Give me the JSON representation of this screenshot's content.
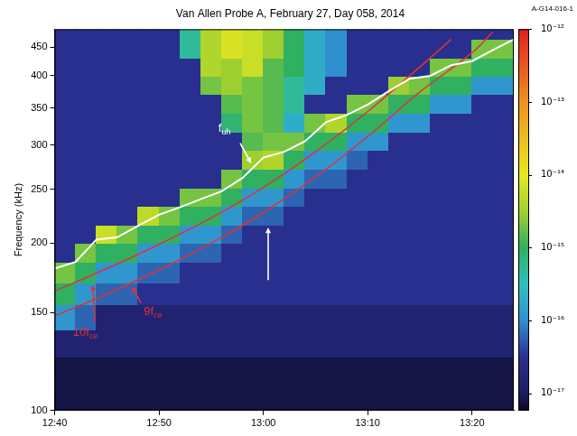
{
  "chart_data": {
    "type": "heatmap",
    "title": "Van Allen Probe A, February 27, Day 058, 2014",
    "corner_label": "A-G14-016-1",
    "y_label": "Frequency (kHz)",
    "log": "y",
    "grid": false,
    "xlim": [
      760,
      804
    ],
    "xticks": [
      {
        "value": 760,
        "label": "12:40"
      },
      {
        "value": 770,
        "label": "12:50"
      },
      {
        "value": 780,
        "label": "13:00"
      },
      {
        "value": 790,
        "label": "13:10"
      },
      {
        "value": 800,
        "label": "13:20"
      }
    ],
    "ylim": [
      100,
      485
    ],
    "yticks": [
      100,
      150,
      200,
      250,
      300,
      350,
      400,
      450
    ],
    "colorbar": {
      "log": true,
      "range": [
        5.8e-18,
        1e-12
      ],
      "ticks": [
        {
          "value": 1e-17,
          "label": "10⁻¹⁷"
        },
        {
          "value": 1e-16,
          "label": "10⁻¹⁶"
        },
        {
          "value": 1e-15,
          "label": "10⁻¹⁵"
        },
        {
          "value": 1e-14,
          "label": "10⁻¹⁴"
        },
        {
          "value": 1e-13,
          "label": "10⁻¹³"
        },
        {
          "value": 1e-12,
          "label": "10⁻¹²"
        }
      ]
    },
    "x_edges": [
      760,
      762,
      764,
      766,
      768,
      770,
      772,
      774,
      776,
      778,
      780,
      782,
      784,
      786,
      788,
      790,
      792,
      794,
      796,
      798,
      800,
      802,
      804
    ],
    "y_edges": [
      100,
      112,
      125,
      140,
      155,
      170,
      185,
      200,
      216,
      233,
      252,
      272,
      294,
      318,
      343,
      370,
      400,
      432,
      466,
      485
    ],
    "cells": [
      [
        8e-18,
        8e-18,
        1.5e-17,
        1.2e-16,
        1e-15,
        2e-15,
        3e-17,
        3e-17,
        3e-17,
        3e-17,
        3e-17,
        3e-17,
        3e-17,
        3e-17,
        3e-17,
        3e-17,
        3e-17,
        3e-17,
        3e-17
      ],
      [
        8e-18,
        8e-18,
        1.5e-17,
        6e-17,
        1.2e-16,
        1e-15,
        2e-15,
        3e-17,
        3e-17,
        3e-17,
        3e-17,
        3e-17,
        3e-17,
        3e-17,
        3e-17,
        3e-17,
        3e-17,
        3e-17,
        3e-17
      ],
      [
        8e-18,
        8e-18,
        1.5e-17,
        1.5e-17,
        6e-17,
        1.2e-16,
        1e-15,
        6e-15,
        3e-17,
        3e-17,
        3e-17,
        3e-17,
        3e-17,
        3e-17,
        3e-17,
        3e-17,
        3e-17,
        3e-17,
        3e-17
      ],
      [
        8e-18,
        8e-18,
        1.5e-17,
        1.5e-17,
        6e-17,
        1.2e-16,
        1e-15,
        2e-15,
        3e-17,
        3e-17,
        3e-17,
        3e-17,
        3e-17,
        3e-17,
        3e-17,
        3e-17,
        3e-17,
        3e-17,
        3e-17
      ],
      [
        8e-18,
        8e-18,
        1.5e-17,
        1.5e-17,
        3e-17,
        6e-17,
        1.2e-16,
        1e-15,
        5e-15,
        3e-17,
        3e-17,
        3e-17,
        3e-17,
        3e-17,
        3e-17,
        3e-17,
        3e-17,
        3e-17,
        3e-17
      ],
      [
        8e-18,
        8e-18,
        1.5e-17,
        1.5e-17,
        3e-17,
        6e-17,
        1.2e-16,
        1e-15,
        2e-15,
        3e-17,
        3e-17,
        3e-17,
        3e-17,
        3e-17,
        3e-17,
        3e-17,
        3e-17,
        3e-17,
        3e-17
      ],
      [
        8e-18,
        8e-18,
        1.5e-17,
        1.5e-17,
        3e-17,
        3e-17,
        6e-17,
        1.2e-16,
        1e-15,
        2e-15,
        3e-17,
        3e-17,
        3e-17,
        3e-17,
        3e-17,
        3e-17,
        3e-17,
        5e-16,
        5e-16
      ],
      [
        8e-18,
        8e-18,
        1.5e-17,
        1.5e-17,
        3e-17,
        3e-17,
        6e-17,
        1.2e-16,
        1e-15,
        2e-15,
        3e-17,
        3e-17,
        3e-17,
        3e-17,
        3e-17,
        2e-15,
        4e-15,
        4e-15,
        4e-15
      ],
      [
        8e-18,
        8e-18,
        1.5e-17,
        1.5e-17,
        3e-17,
        3e-17,
        3e-17,
        6e-17,
        1.2e-16,
        1e-15,
        2e-15,
        3e-17,
        3e-17,
        8e-16,
        1.5e-15,
        3e-15,
        3e-15,
        8e-15,
        8e-15
      ],
      [
        8e-18,
        8e-18,
        1.5e-17,
        1.5e-17,
        3e-17,
        3e-17,
        3e-17,
        3e-17,
        6e-17,
        1.2e-16,
        1e-15,
        3e-15,
        1.5e-15,
        2e-15,
        2e-15,
        2e-15,
        6e-15,
        6e-15,
        6e-15
      ],
      [
        8e-18,
        8e-18,
        1.5e-17,
        1.5e-17,
        3e-17,
        3e-17,
        3e-17,
        3e-17,
        6e-17,
        1.2e-16,
        1e-15,
        4e-15,
        2e-15,
        1.5e-15,
        1.5e-15,
        1.5e-15,
        1.5e-15,
        3e-15,
        3e-15
      ],
      [
        8e-18,
        8e-18,
        1.5e-17,
        1.5e-17,
        3e-17,
        3e-17,
        3e-17,
        3e-17,
        3e-17,
        6e-17,
        1.2e-16,
        1e-15,
        2e-15,
        2e-16,
        5e-16,
        5e-16,
        1e-15,
        1e-15,
        1e-15
      ],
      [
        8e-18,
        8e-18,
        1.5e-17,
        1.5e-17,
        3e-17,
        3e-17,
        3e-17,
        3e-17,
        3e-17,
        3e-17,
        6e-17,
        1.2e-16,
        1e-15,
        2e-15,
        3e-17,
        2e-16,
        2e-16,
        2e-16,
        2e-16
      ],
      [
        8e-18,
        8e-18,
        1.5e-17,
        1.5e-17,
        3e-17,
        3e-17,
        3e-17,
        3e-17,
        3e-17,
        3e-17,
        6e-17,
        1.2e-16,
        1e-15,
        4e-15,
        3e-17,
        3e-17,
        1e-16,
        1e-16,
        1e-16
      ],
      [
        8e-18,
        8e-18,
        1.5e-17,
        1.5e-17,
        3e-17,
        3e-17,
        3e-17,
        3e-17,
        3e-17,
        3e-17,
        3e-17,
        6e-17,
        1.2e-16,
        1e-15,
        2e-15,
        3e-17,
        3e-17,
        3e-17,
        3e-17
      ],
      [
        8e-18,
        8e-18,
        1.5e-17,
        1.5e-17,
        3e-17,
        3e-17,
        3e-17,
        3e-17,
        3e-17,
        3e-17,
        3e-17,
        3e-17,
        1.2e-16,
        1e-15,
        2e-15,
        3e-17,
        3e-17,
        3e-17,
        3e-17
      ],
      [
        8e-18,
        8e-18,
        1.5e-17,
        1.5e-17,
        3e-17,
        3e-17,
        3e-17,
        3e-17,
        3e-17,
        3e-17,
        3e-17,
        3e-17,
        3e-17,
        1.2e-16,
        1e-15,
        3e-15,
        3e-17,
        3e-17,
        3e-17
      ],
      [
        8e-18,
        8e-18,
        1.5e-17,
        1.5e-17,
        3e-17,
        3e-17,
        3e-17,
        3e-17,
        3e-17,
        3e-17,
        3e-17,
        3e-17,
        3e-17,
        1.2e-16,
        1e-15,
        2e-15,
        3e-17,
        3e-17,
        3e-17
      ],
      [
        8e-18,
        8e-18,
        1.5e-17,
        1.5e-17,
        3e-17,
        3e-17,
        3e-17,
        3e-17,
        3e-17,
        3e-17,
        3e-17,
        3e-17,
        3e-17,
        3e-17,
        1.2e-16,
        1e-15,
        2e-15,
        3e-17,
        3e-17
      ],
      [
        8e-18,
        8e-18,
        1.5e-17,
        1.5e-17,
        3e-17,
        3e-17,
        3e-17,
        3e-17,
        3e-17,
        3e-17,
        3e-17,
        3e-17,
        3e-17,
        3e-17,
        1.2e-16,
        1e-15,
        2e-15,
        3e-17,
        3e-17
      ],
      [
        8e-18,
        8e-18,
        1.5e-17,
        1.5e-17,
        3e-17,
        3e-17,
        3e-17,
        3e-17,
        3e-17,
        3e-17,
        3e-17,
        3e-17,
        3e-17,
        3e-17,
        3e-17,
        1.2e-16,
        1e-15,
        2e-15,
        3e-17
      ],
      [
        8e-18,
        8e-18,
        1.5e-17,
        1.5e-17,
        3e-17,
        3e-17,
        3e-17,
        3e-17,
        3e-17,
        3e-17,
        3e-17,
        3e-17,
        3e-17,
        3e-17,
        3e-17,
        1.2e-16,
        1e-15,
        2e-15,
        3e-17
      ]
    ],
    "series": [
      {
        "label": {
          "text": "f",
          "sub": "uh"
        },
        "color": "#ffffff",
        "type": "line",
        "x": [
          760,
          762,
          764,
          766,
          768,
          770,
          772,
          774,
          776,
          778,
          780,
          782,
          784,
          786,
          788,
          790,
          792,
          794,
          796,
          798,
          800,
          802,
          804
        ],
        "values": [
          180,
          185,
          203,
          205,
          215,
          225,
          232,
          240,
          248,
          262,
          285,
          292,
          305,
          330,
          340,
          355,
          375,
          395,
          400,
          418,
          425,
          445,
          465
        ]
      },
      {
        "label": {
          "text": "10f",
          "sub": "ce"
        },
        "color": "#e0303c",
        "type": "line",
        "x": [
          760,
          765,
          770,
          775,
          780,
          785,
          790,
          795,
          798
        ],
        "values": [
          164,
          180,
          199,
          222,
          252,
          292,
          345,
          415,
          465
        ]
      },
      {
        "label": {
          "text": "9f",
          "sub": "ce"
        },
        "color": "#e0303c",
        "type": "line",
        "x": [
          760,
          765,
          770,
          775,
          780,
          785,
          790,
          795,
          800,
          802
        ],
        "values": [
          148,
          162,
          179,
          200,
          227,
          263,
          311,
          374,
          440,
          480
        ]
      }
    ]
  }
}
